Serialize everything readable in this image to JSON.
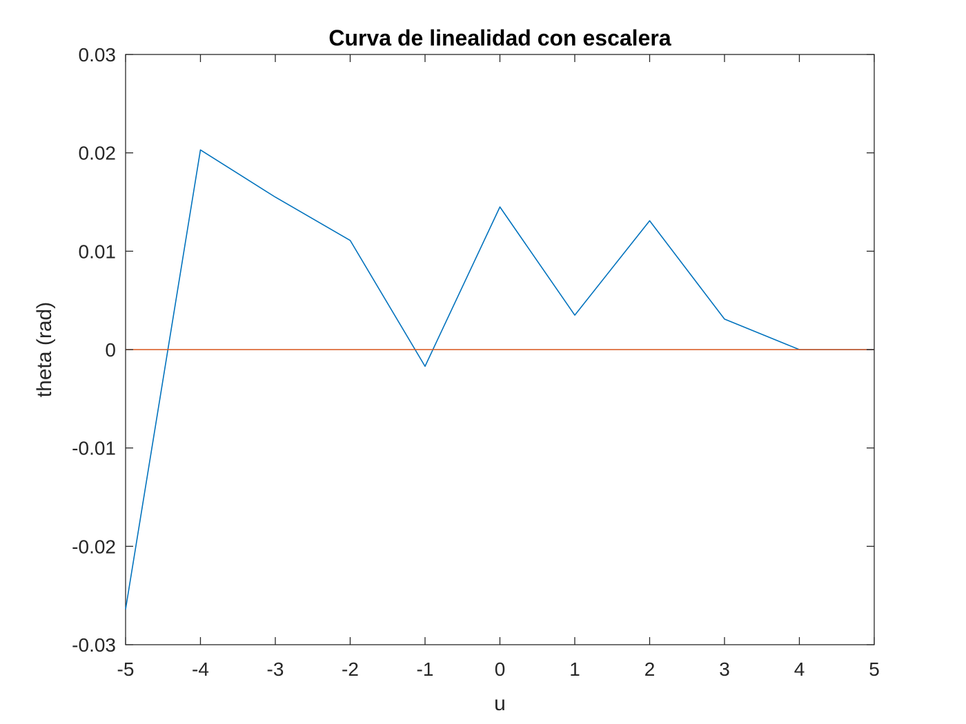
{
  "chart_data": {
    "type": "line",
    "title": "Curva de linealidad con escalera",
    "xlabel": "u",
    "ylabel": "theta (rad)",
    "xlim": [
      -5,
      5
    ],
    "ylim": [
      -0.03,
      0.03
    ],
    "xticks": [
      -5,
      -4,
      -3,
      -2,
      -1,
      0,
      1,
      2,
      3,
      4,
      5
    ],
    "xtick_labels": [
      "-5",
      "-4",
      "-3",
      "-2",
      "-1",
      "0",
      "1",
      "2",
      "3",
      "4",
      "5"
    ],
    "yticks": [
      0.03,
      0.02,
      0.01,
      0,
      -0.01,
      -0.02,
      -0.03
    ],
    "ytick_labels": [
      "0.03",
      "0.02",
      "0.01",
      "0",
      "-0.01",
      "-0.02",
      "-0.03"
    ],
    "grid": false,
    "box": true,
    "series": [
      {
        "color": "#0072BD",
        "x": [
          -5,
          -4,
          -3,
          -2,
          -1,
          0,
          1,
          2,
          3,
          4,
          5
        ],
        "y": [
          -0.0264,
          0.0203,
          0.0155,
          0.0111,
          -0.0017,
          0.0145,
          0.0035,
          0.0131,
          0.0031,
          0.0,
          0.0
        ]
      },
      {
        "color": "#D95319",
        "x": [
          -5,
          5
        ],
        "y": [
          0,
          0
        ]
      }
    ]
  }
}
